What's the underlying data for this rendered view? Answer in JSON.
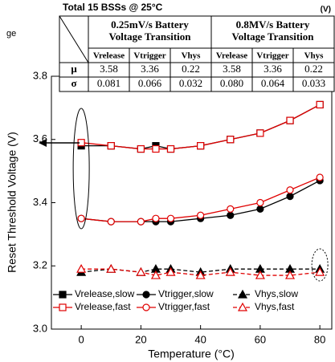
{
  "chart_data": {
    "type": "line",
    "x_label": "Temperature (°C)",
    "y_label": "Reset Threshold Voltage (V)",
    "annotations": [
      "ge"
    ],
    "x": [
      0,
      10,
      20,
      25,
      30,
      40,
      50,
      60,
      70,
      80
    ],
    "series": [
      {
        "name": "Vrelease,slow",
        "color": "#000000",
        "marker": "square",
        "filled": true,
        "dashed": false,
        "values": [
          3.58,
          3.58,
          3.57,
          3.58,
          3.57,
          3.58,
          3.6,
          3.62,
          3.66,
          3.71
        ]
      },
      {
        "name": "Vtrigger,slow",
        "color": "#000000",
        "marker": "circle",
        "filled": true,
        "dashed": false,
        "values": [
          3.35,
          3.34,
          3.34,
          3.34,
          3.34,
          3.35,
          3.36,
          3.38,
          3.42,
          3.47
        ]
      },
      {
        "name": "Vhys,slow",
        "color": "#000000",
        "marker": "triangle",
        "filled": true,
        "dashed": true,
        "values": [
          3.18,
          3.19,
          3.18,
          3.19,
          3.19,
          3.18,
          3.19,
          3.19,
          3.19,
          3.19
        ]
      },
      {
        "name": "Vrelease,fast",
        "color": "#e00000",
        "marker": "square",
        "filled": false,
        "dashed": false,
        "values": [
          3.59,
          3.58,
          3.57,
          3.57,
          3.57,
          3.58,
          3.6,
          3.62,
          3.66,
          3.71
        ]
      },
      {
        "name": "Vtrigger,fast",
        "color": "#e00000",
        "marker": "circle",
        "filled": false,
        "dashed": false,
        "values": [
          3.35,
          3.34,
          3.34,
          3.35,
          3.35,
          3.36,
          3.38,
          3.4,
          3.44,
          3.48
        ]
      },
      {
        "name": "Vhys,fast",
        "color": "#e00000",
        "marker": "triangle",
        "filled": false,
        "dashed": true,
        "values": [
          3.19,
          3.19,
          3.18,
          3.17,
          3.18,
          3.17,
          3.18,
          3.17,
          3.17,
          3.18
        ]
      }
    ],
    "xlim": [
      -10,
      84
    ],
    "xticks": [
      0,
      20,
      40,
      60,
      80
    ],
    "ylim": [
      3.0,
      3.8
    ],
    "yticks": [
      {
        "value": 3.0,
        "label": "3.0"
      },
      3.2,
      3.4,
      3.6,
      3.8
    ]
  },
  "table": {
    "title": "Total 15 BSSs @ 25°C",
    "unit": "(V)",
    "groups": [
      [
        "0.25mV/s Battery",
        "Voltage Transition"
      ],
      [
        "0.8MV/s Battery",
        "Voltage Transition"
      ]
    ],
    "columns": [
      "Vrelease",
      "Vtrigger",
      "Vhys",
      "Vrelease",
      "Vtrigger",
      "Vhys"
    ],
    "rows": [
      [
        "μ",
        "3.58",
        "3.36",
        "0.22",
        "3.58",
        "3.36",
        "0.22"
      ],
      [
        "σ",
        "0.081",
        "0.066",
        "0.032",
        "0.080",
        "0.064",
        "0.033"
      ]
    ]
  }
}
